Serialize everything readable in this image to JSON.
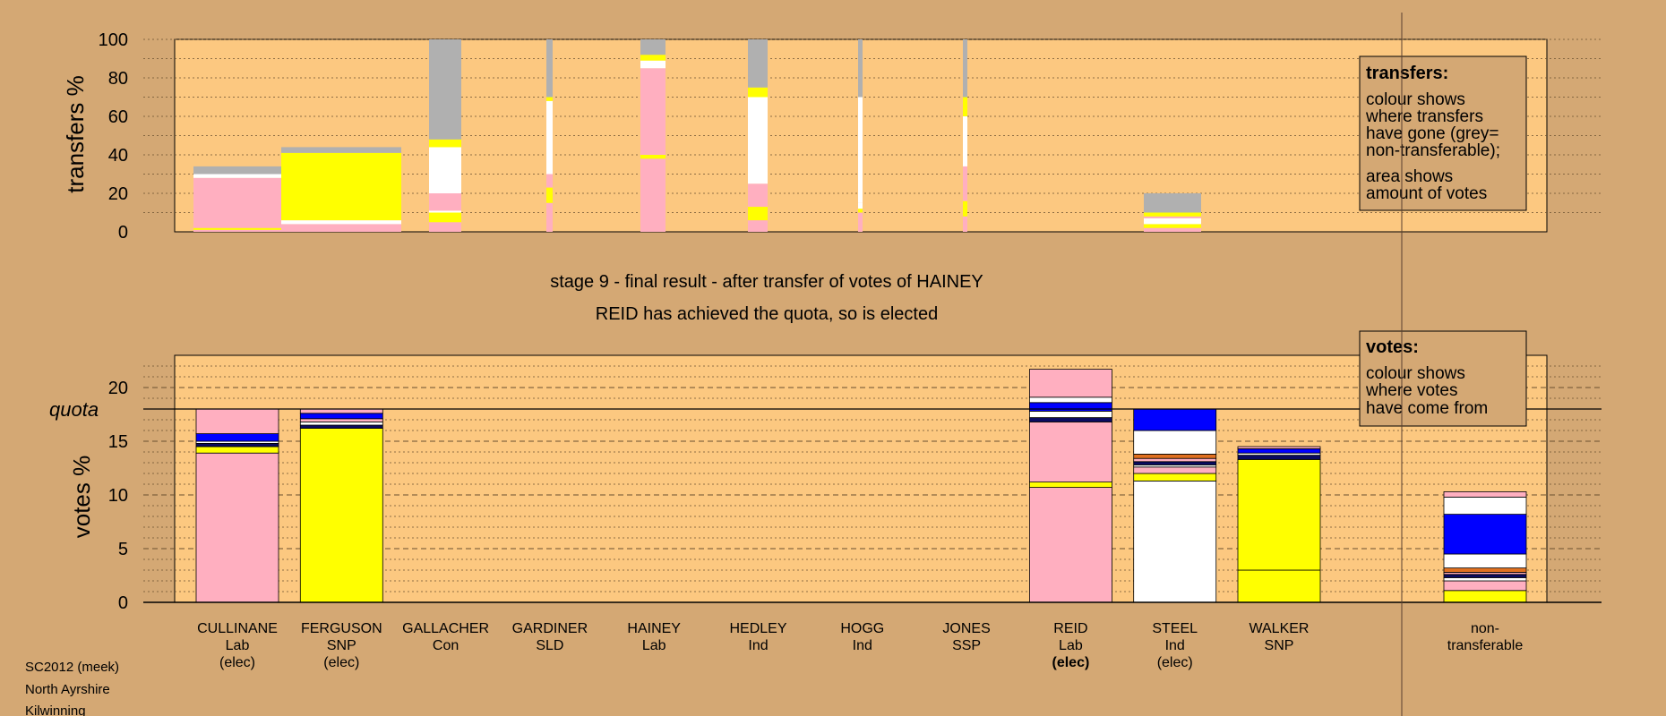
{
  "colors": {
    "page_bg": "#d4a874",
    "plot_bg": "#fcc880",
    "Lab": "#ffafc0",
    "SNP": "#ffff00",
    "Con": "#0000ff",
    "Ind": "#ffffff",
    "SSP": "#e07020",
    "SLD": "#0a0a60",
    "nontransferable": "#b0b0b0"
  },
  "chart_data": [
    {
      "type": "bar",
      "name": "transfers",
      "ylabel": "transfers %",
      "ylim": [
        0,
        100
      ],
      "yticks": [
        0,
        20,
        40,
        60,
        80,
        100
      ],
      "grid": true,
      "legend": {
        "position": "top-right",
        "title": "transfers:",
        "lines": [
          "colour shows",
          "where transfers",
          "have gone (grey=",
          "non-transferable);"
        ],
        "lines2": [
          "area shows",
          "amount of votes"
        ]
      },
      "series": [
        {
          "segments": [
            [
              "Lab",
              0,
              1
            ],
            [
              "SNP",
              1,
              2
            ],
            [
              "Lab",
              2,
              28
            ],
            [
              "Ind",
              28,
              30
            ],
            [
              "nontransferable",
              30,
              34
            ]
          ]
        },
        {
          "segments": [
            [
              "Lab",
              0,
              4
            ],
            [
              "Ind",
              4,
              6
            ],
            [
              "SNP",
              6,
              41
            ],
            [
              "nontransferable",
              41,
              44
            ]
          ]
        },
        {
          "segments": [
            [
              "Lab",
              0,
              5
            ],
            [
              "SNP",
              5,
              10
            ],
            [
              "Ind",
              10,
              11
            ],
            [
              "Lab",
              11,
              20
            ],
            [
              "Ind",
              20,
              44
            ],
            [
              "SNP",
              44,
              48
            ],
            [
              "nontransferable",
              48,
              100
            ]
          ]
        },
        {
          "segments": [
            [
              "Lab",
              0,
              15
            ],
            [
              "SNP",
              15,
              23
            ],
            [
              "Lab",
              23,
              30
            ],
            [
              "Ind",
              30,
              60
            ],
            [
              "Ind",
              60,
              68
            ],
            [
              "SNP",
              68,
              70
            ],
            [
              "nontransferable",
              70,
              100
            ]
          ]
        },
        {
          "segments": [
            [
              "Lab",
              0,
              38
            ],
            [
              "SNP",
              38,
              40
            ],
            [
              "Lab",
              40,
              85
            ],
            [
              "Ind",
              85,
              89
            ],
            [
              "SNP",
              89,
              92
            ],
            [
              "nontransferable",
              92,
              100
            ]
          ]
        },
        {
          "segments": [
            [
              "Lab",
              0,
              6
            ],
            [
              "SNP",
              6,
              13
            ],
            [
              "Lab",
              13,
              25
            ],
            [
              "Ind",
              25,
              70
            ],
            [
              "SNP",
              70,
              75
            ],
            [
              "nontransferable",
              75,
              100
            ]
          ]
        },
        {
          "segments": [
            [
              "Lab",
              0,
              10
            ],
            [
              "SNP",
              10,
              12
            ],
            [
              "Ind",
              12,
              15
            ],
            [
              "Ind",
              15,
              70
            ],
            [
              "nontransferable",
              70,
              100
            ]
          ]
        },
        {
          "segments": [
            [
              "Lab",
              0,
              8
            ],
            [
              "SNP",
              8,
              16
            ],
            [
              "Lab",
              16,
              34
            ],
            [
              "Ind",
              34,
              60
            ],
            [
              "SNP",
              60,
              70
            ],
            [
              "nontransferable",
              70,
              100
            ]
          ]
        },
        {
          "segments": [
            [
              "Lab",
              0,
              2
            ],
            [
              "SNP",
              2,
              4
            ],
            [
              "Ind",
              4,
              7
            ],
            [
              "Lab",
              7,
              8
            ],
            [
              "SNP",
              8,
              10
            ],
            [
              "nontransferable",
              10,
              20
            ]
          ]
        }
      ]
    },
    {
      "type": "bar",
      "name": "votes",
      "title": "stage 9 - final result - after transfer of votes of HAINEY",
      "subtitle": "REID has achieved the quota, so is elected",
      "ylabel": "votes %",
      "quota_label": "quota",
      "quota": 18,
      "ylim": [
        0,
        23
      ],
      "yticks": [
        0,
        5,
        10,
        15,
        20
      ],
      "grid": true,
      "legend": {
        "position": "top-right",
        "title": "votes:",
        "lines": [
          "colour shows",
          "where votes",
          "have come from"
        ]
      },
      "candidates": [
        {
          "name": "CULLINANE",
          "party": "Lab",
          "status": "(elec)",
          "bold": false,
          "segments": [
            [
              "Lab",
              0,
              13.9
            ],
            [
              "SNP",
              13.9,
              14.5
            ],
            [
              "SLD",
              14.5,
              14.8
            ],
            [
              "Ind",
              14.8,
              15
            ],
            [
              "Con",
              15,
              15.7
            ],
            [
              "Lab",
              15.7,
              18
            ]
          ]
        },
        {
          "name": "FERGUSON",
          "party": "SNP",
          "status": "(elec)",
          "bold": false,
          "segments": [
            [
              "SNP",
              0,
              16.2
            ],
            [
              "SLD",
              16.2,
              16.5
            ],
            [
              "Ind",
              16.5,
              16.8
            ],
            [
              "Lab",
              16.8,
              17.1
            ],
            [
              "Con",
              17.1,
              17.6
            ],
            [
              "Lab",
              17.6,
              18
            ]
          ]
        },
        {
          "name": "GALLACHER",
          "party": "Con",
          "status": "",
          "bold": false,
          "segments": []
        },
        {
          "name": "GARDINER",
          "party": "SLD",
          "status": "",
          "bold": false,
          "segments": []
        },
        {
          "name": "HAINEY",
          "party": "Lab",
          "status": "",
          "bold": false,
          "segments": []
        },
        {
          "name": "HEDLEY",
          "party": "Ind",
          "status": "",
          "bold": false,
          "segments": []
        },
        {
          "name": "HOGG",
          "party": "Ind",
          "status": "",
          "bold": false,
          "segments": []
        },
        {
          "name": "JONES",
          "party": "SSP",
          "status": "",
          "bold": false,
          "segments": []
        },
        {
          "name": "REID",
          "party": "Lab",
          "status": "(elec)",
          "bold": true,
          "segments": [
            [
              "Lab",
              0,
              10.7
            ],
            [
              "SNP",
              10.7,
              11.2
            ],
            [
              "Lab",
              11.2,
              16.8
            ],
            [
              "SLD",
              16.8,
              17.2
            ],
            [
              "Ind",
              17.2,
              17.8
            ],
            [
              "Con",
              17.8,
              18.6
            ],
            [
              "Ind",
              18.6,
              19.1
            ],
            [
              "Lab",
              19.1,
              21.7
            ]
          ]
        },
        {
          "name": "STEEL",
          "party": "Ind",
          "status": "(elec)",
          "bold": false,
          "segments": [
            [
              "Ind",
              0,
              11.3
            ],
            [
              "SNP",
              11.3,
              12
            ],
            [
              "Lab",
              12,
              12.6
            ],
            [
              "Ind",
              12.6,
              12.8
            ],
            [
              "SLD",
              12.8,
              13.1
            ],
            [
              "Lab",
              13.1,
              13.4
            ],
            [
              "SSP",
              13.4,
              13.8
            ],
            [
              "Ind",
              13.8,
              16
            ],
            [
              "Con",
              16,
              18
            ]
          ]
        },
        {
          "name": "WALKER",
          "party": "SNP",
          "status": "",
          "bold": false,
          "segments": [
            [
              "SNP",
              0,
              3
            ],
            [
              "SNP",
              3,
              13.3
            ],
            [
              "SLD",
              13.3,
              13.7
            ],
            [
              "Ind",
              13.7,
              13.9
            ],
            [
              "Con",
              13.9,
              14.3
            ],
            [
              "Lab",
              14.3,
              14.5
            ]
          ]
        }
      ],
      "nontransferable": {
        "label1": "non-",
        "label2": "transferable",
        "segments": [
          [
            "SNP",
            0,
            1.1
          ],
          [
            "Lab",
            1.1,
            2
          ],
          [
            "Ind",
            2,
            2.3
          ],
          [
            "SLD",
            2.3,
            2.6
          ],
          [
            "Lab",
            2.6,
            2.8
          ],
          [
            "SSP",
            2.8,
            3.2
          ],
          [
            "Ind",
            3.2,
            4.5
          ],
          [
            "Con",
            4.5,
            8.2
          ],
          [
            "Ind",
            8.2,
            9.8
          ],
          [
            "Lab",
            9.8,
            10.3
          ]
        ]
      }
    }
  ],
  "footer": {
    "line1": "SC2012 (meek)",
    "line2": "North Ayrshire",
    "line3": "Kilwinning"
  }
}
